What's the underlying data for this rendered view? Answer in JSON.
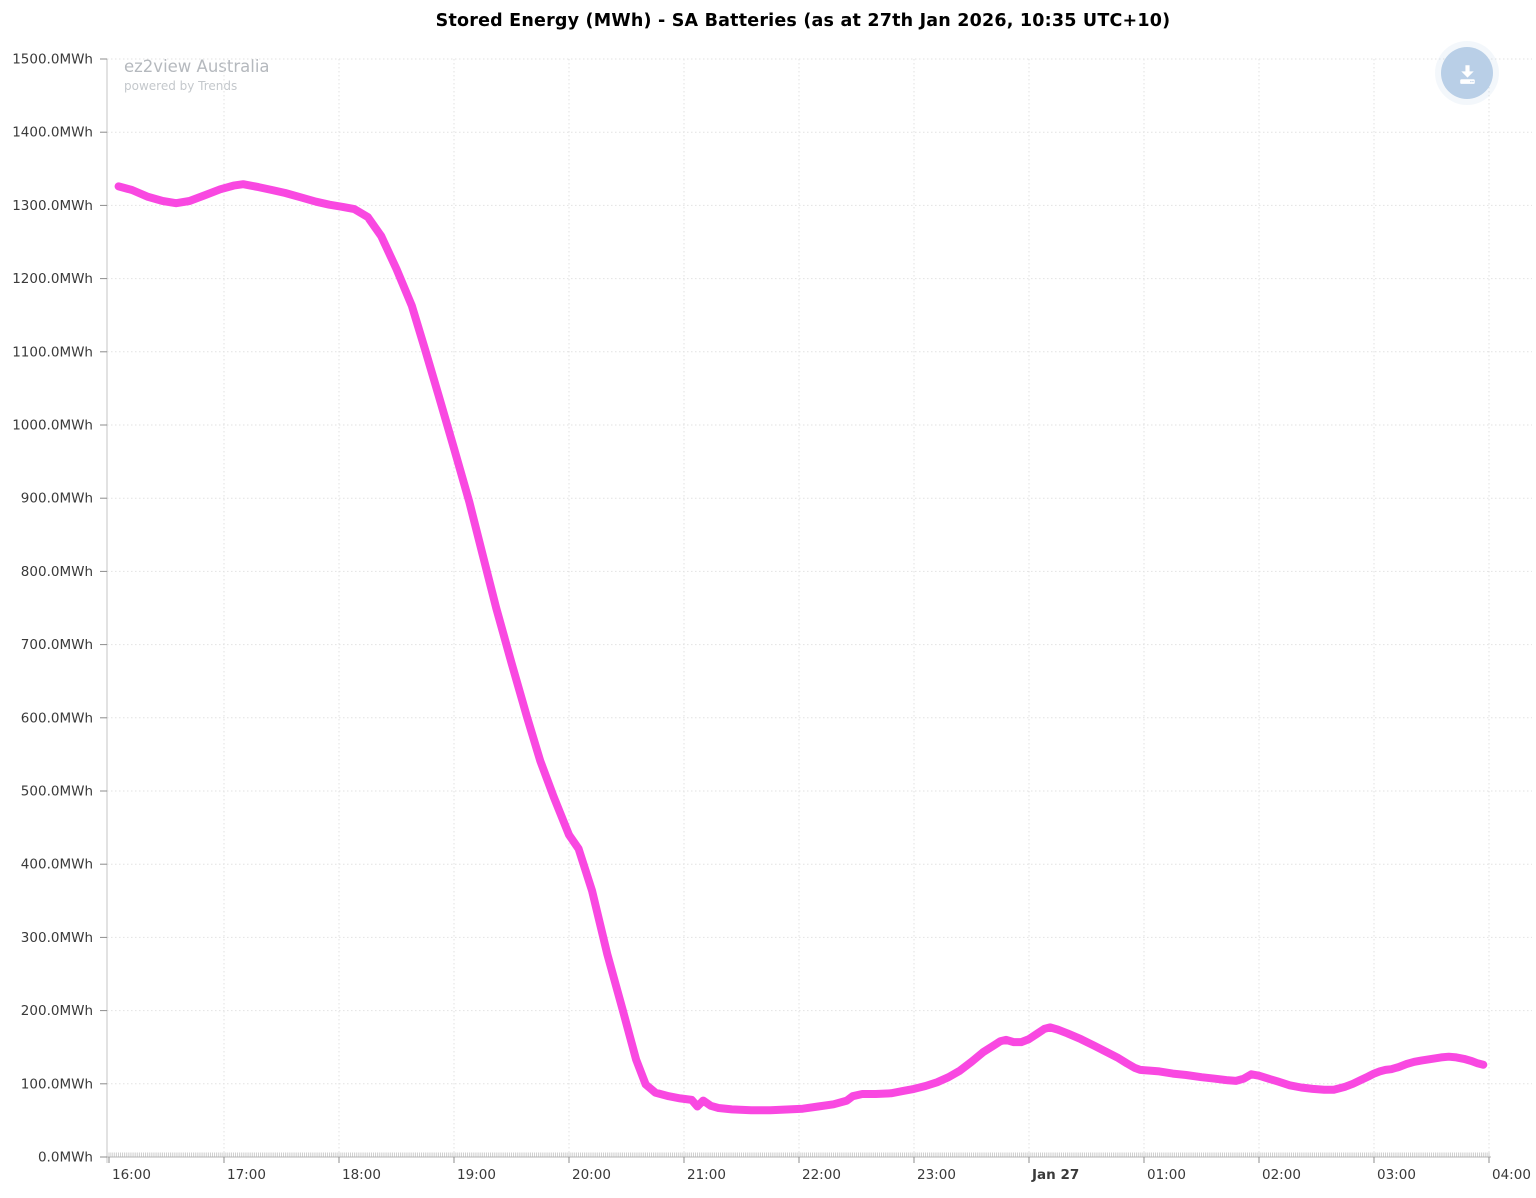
{
  "header": {
    "title": "Stored Energy (MWh) - SA Batteries (as at 27th Jan 2026, 10:35 UTC+10)"
  },
  "watermark": {
    "brand": "ez2view Australia",
    "tagline": "powered by Trends"
  },
  "icons": {
    "download": "download-arrow-into-tray"
  },
  "colors": {
    "series_line": "#f948e1",
    "download_button_bg": "#b9cfe7",
    "download_icon": "#ffffff",
    "y_axis_line": "#c6c6c6",
    "x_axis_line": "#b5b5b5",
    "tick": "#8c8c8c",
    "minor_tick": "#bdbdbd",
    "grid": "#e2e2e2",
    "tick_label": "#3a3a3a",
    "title": "#000000",
    "watermark_brand": "#b5b9be",
    "watermark_tagline": "#c4c8cc"
  },
  "chart_data": {
    "type": "line",
    "title": "Stored Energy (MWh) - SA Batteries (as at 27th Jan 2026, 10:35 UTC+10)",
    "legend": "none",
    "grid": true,
    "x_axis": {
      "tick_labels": [
        "16:00",
        "17:00",
        "18:00",
        "19:00",
        "20:00",
        "21:00",
        "22:00",
        "23:00",
        "Jan 27",
        "01:00",
        "02:00",
        "03:00",
        "04:00"
      ],
      "bold_tick": "Jan 27",
      "hours_span": 12,
      "minor_tick_minutes": 1
    },
    "y_axis": {
      "tick_labels": [
        "0.0MWh",
        "100.0MWh",
        "200.0MWh",
        "300.0MWh",
        "400.0MWh",
        "500.0MWh",
        "600.0MWh",
        "700.0MWh",
        "800.0MWh",
        "900.0MWh",
        "1000.0MWh",
        "1100.0MWh",
        "1200.0MWh",
        "1300.0MWh",
        "1400.0MWh",
        "1500.0MWh"
      ],
      "min": 0,
      "max": 1500,
      "step": 100
    },
    "series": [
      {
        "name": "SA Batteries Stored Energy (MWh)",
        "color": "#f948e1",
        "points_format": "[minutes_after_16:00, MWh]",
        "points": [
          [
            5,
            1326
          ],
          [
            12,
            1321
          ],
          [
            20,
            1312
          ],
          [
            28,
            1306
          ],
          [
            35,
            1303
          ],
          [
            42,
            1306
          ],
          [
            50,
            1314
          ],
          [
            58,
            1322
          ],
          [
            65,
            1327
          ],
          [
            70,
            1329
          ],
          [
            78,
            1325
          ],
          [
            85,
            1321
          ],
          [
            92,
            1317
          ],
          [
            100,
            1311
          ],
          [
            108,
            1305
          ],
          [
            115,
            1301
          ],
          [
            122,
            1298
          ],
          [
            128,
            1295
          ],
          [
            135,
            1284
          ],
          [
            142,
            1258
          ],
          [
            150,
            1213
          ],
          [
            158,
            1163
          ],
          [
            165,
            1102
          ],
          [
            172,
            1040
          ],
          [
            180,
            968
          ],
          [
            188,
            895
          ],
          [
            195,
            822
          ],
          [
            202,
            750
          ],
          [
            210,
            675
          ],
          [
            218,
            602
          ],
          [
            225,
            541
          ],
          [
            232,
            492
          ],
          [
            240,
            440
          ],
          [
            245,
            421
          ],
          [
            252,
            364
          ],
          [
            260,
            277
          ],
          [
            268,
            201
          ],
          [
            275,
            133
          ],
          [
            280,
            99
          ],
          [
            285,
            88
          ],
          [
            292,
            83
          ],
          [
            298,
            80
          ],
          [
            304,
            78
          ],
          [
            307,
            69
          ],
          [
            310,
            77
          ],
          [
            314,
            70
          ],
          [
            318,
            67
          ],
          [
            325,
            65
          ],
          [
            335,
            64
          ],
          [
            345,
            64
          ],
          [
            355,
            65
          ],
          [
            362,
            66
          ],
          [
            370,
            69
          ],
          [
            378,
            72
          ],
          [
            385,
            77
          ],
          [
            388,
            83
          ],
          [
            393,
            86
          ],
          [
            400,
            86
          ],
          [
            408,
            87
          ],
          [
            414,
            90
          ],
          [
            420,
            93
          ],
          [
            426,
            97
          ],
          [
            432,
            102
          ],
          [
            438,
            109
          ],
          [
            444,
            118
          ],
          [
            450,
            130
          ],
          [
            456,
            143
          ],
          [
            462,
            153
          ],
          [
            465,
            158
          ],
          [
            468,
            160
          ],
          [
            472,
            157
          ],
          [
            476,
            157
          ],
          [
            480,
            161
          ],
          [
            484,
            168
          ],
          [
            488,
            175
          ],
          [
            491,
            177
          ],
          [
            495,
            174
          ],
          [
            500,
            169
          ],
          [
            507,
            161
          ],
          [
            514,
            152
          ],
          [
            520,
            144
          ],
          [
            526,
            136
          ],
          [
            531,
            128
          ],
          [
            535,
            122
          ],
          [
            538,
            119
          ],
          [
            543,
            118
          ],
          [
            548,
            117
          ],
          [
            555,
            114
          ],
          [
            562,
            112
          ],
          [
            570,
            109
          ],
          [
            577,
            107
          ],
          [
            583,
            105
          ],
          [
            588,
            104
          ],
          [
            592,
            107
          ],
          [
            596,
            113
          ],
          [
            600,
            111
          ],
          [
            605,
            107
          ],
          [
            610,
            103
          ],
          [
            616,
            98
          ],
          [
            622,
            95
          ],
          [
            628,
            93
          ],
          [
            634,
            92
          ],
          [
            639,
            92
          ],
          [
            645,
            96
          ],
          [
            649,
            100
          ],
          [
            653,
            105
          ],
          [
            657,
            110
          ],
          [
            660,
            114
          ],
          [
            663,
            117
          ],
          [
            666,
            119
          ],
          [
            669,
            120
          ],
          [
            673,
            123
          ],
          [
            677,
            127
          ],
          [
            681,
            130
          ],
          [
            685,
            132
          ],
          [
            690,
            134
          ],
          [
            695,
            136
          ],
          [
            699,
            137
          ],
          [
            703,
            136
          ],
          [
            707,
            134
          ],
          [
            711,
            131
          ],
          [
            714,
            128
          ],
          [
            717,
            126
          ]
        ]
      }
    ]
  }
}
